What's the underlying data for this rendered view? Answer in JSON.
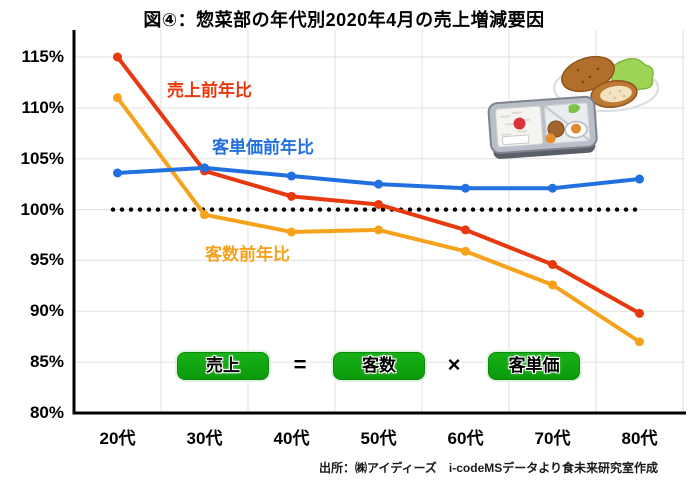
{
  "title": "図④：惣菜部の年代別2020年4月の売上増減要因",
  "chart_data": {
    "type": "line",
    "title": "図④：惣菜部の年代別2020年4月の売上増減要因",
    "xlabel": "",
    "ylabel": "",
    "categories": [
      "20代",
      "30代",
      "40代",
      "50代",
      "60代",
      "70代",
      "80代"
    ],
    "series": [
      {
        "name": "売上前年比",
        "color": "#e8380d",
        "values": [
          115.0,
          103.8,
          101.3,
          100.5,
          98.0,
          94.6,
          89.8
        ]
      },
      {
        "name": "客単価前年比",
        "color": "#2270e0",
        "values": [
          103.6,
          104.1,
          103.3,
          102.5,
          102.1,
          102.1,
          103.0
        ]
      },
      {
        "name": "客数前年比",
        "color": "#f6a21d",
        "values": [
          111.0,
          99.5,
          97.8,
          98.0,
          95.9,
          92.6,
          87.0
        ]
      }
    ],
    "ylim": [
      80,
      115
    ],
    "y_ticks": [
      "115%",
      "110%",
      "105%",
      "100%",
      "95%",
      "90%",
      "85%",
      "80%"
    ],
    "y_tick_values": [
      115,
      110,
      105,
      100,
      95,
      90,
      85,
      80
    ],
    "reference_line": {
      "value": 100,
      "style": "dotted",
      "color": "#000000"
    },
    "grid": true,
    "gridline_color": "#e0e0e0",
    "legend_position": "inline-labels"
  },
  "formula": {
    "sales": "売上",
    "equals": "=",
    "customers": "客数",
    "times": "×",
    "unit_price": "客単価",
    "box_color": "#0ca10c"
  },
  "footer": {
    "source": "出所：㈱アイディーズ　i-codeMSデータより食未来研究室作成"
  },
  "illustrations": {
    "plate": "croquette-plate-icon",
    "bento": "bento-box-icon"
  }
}
